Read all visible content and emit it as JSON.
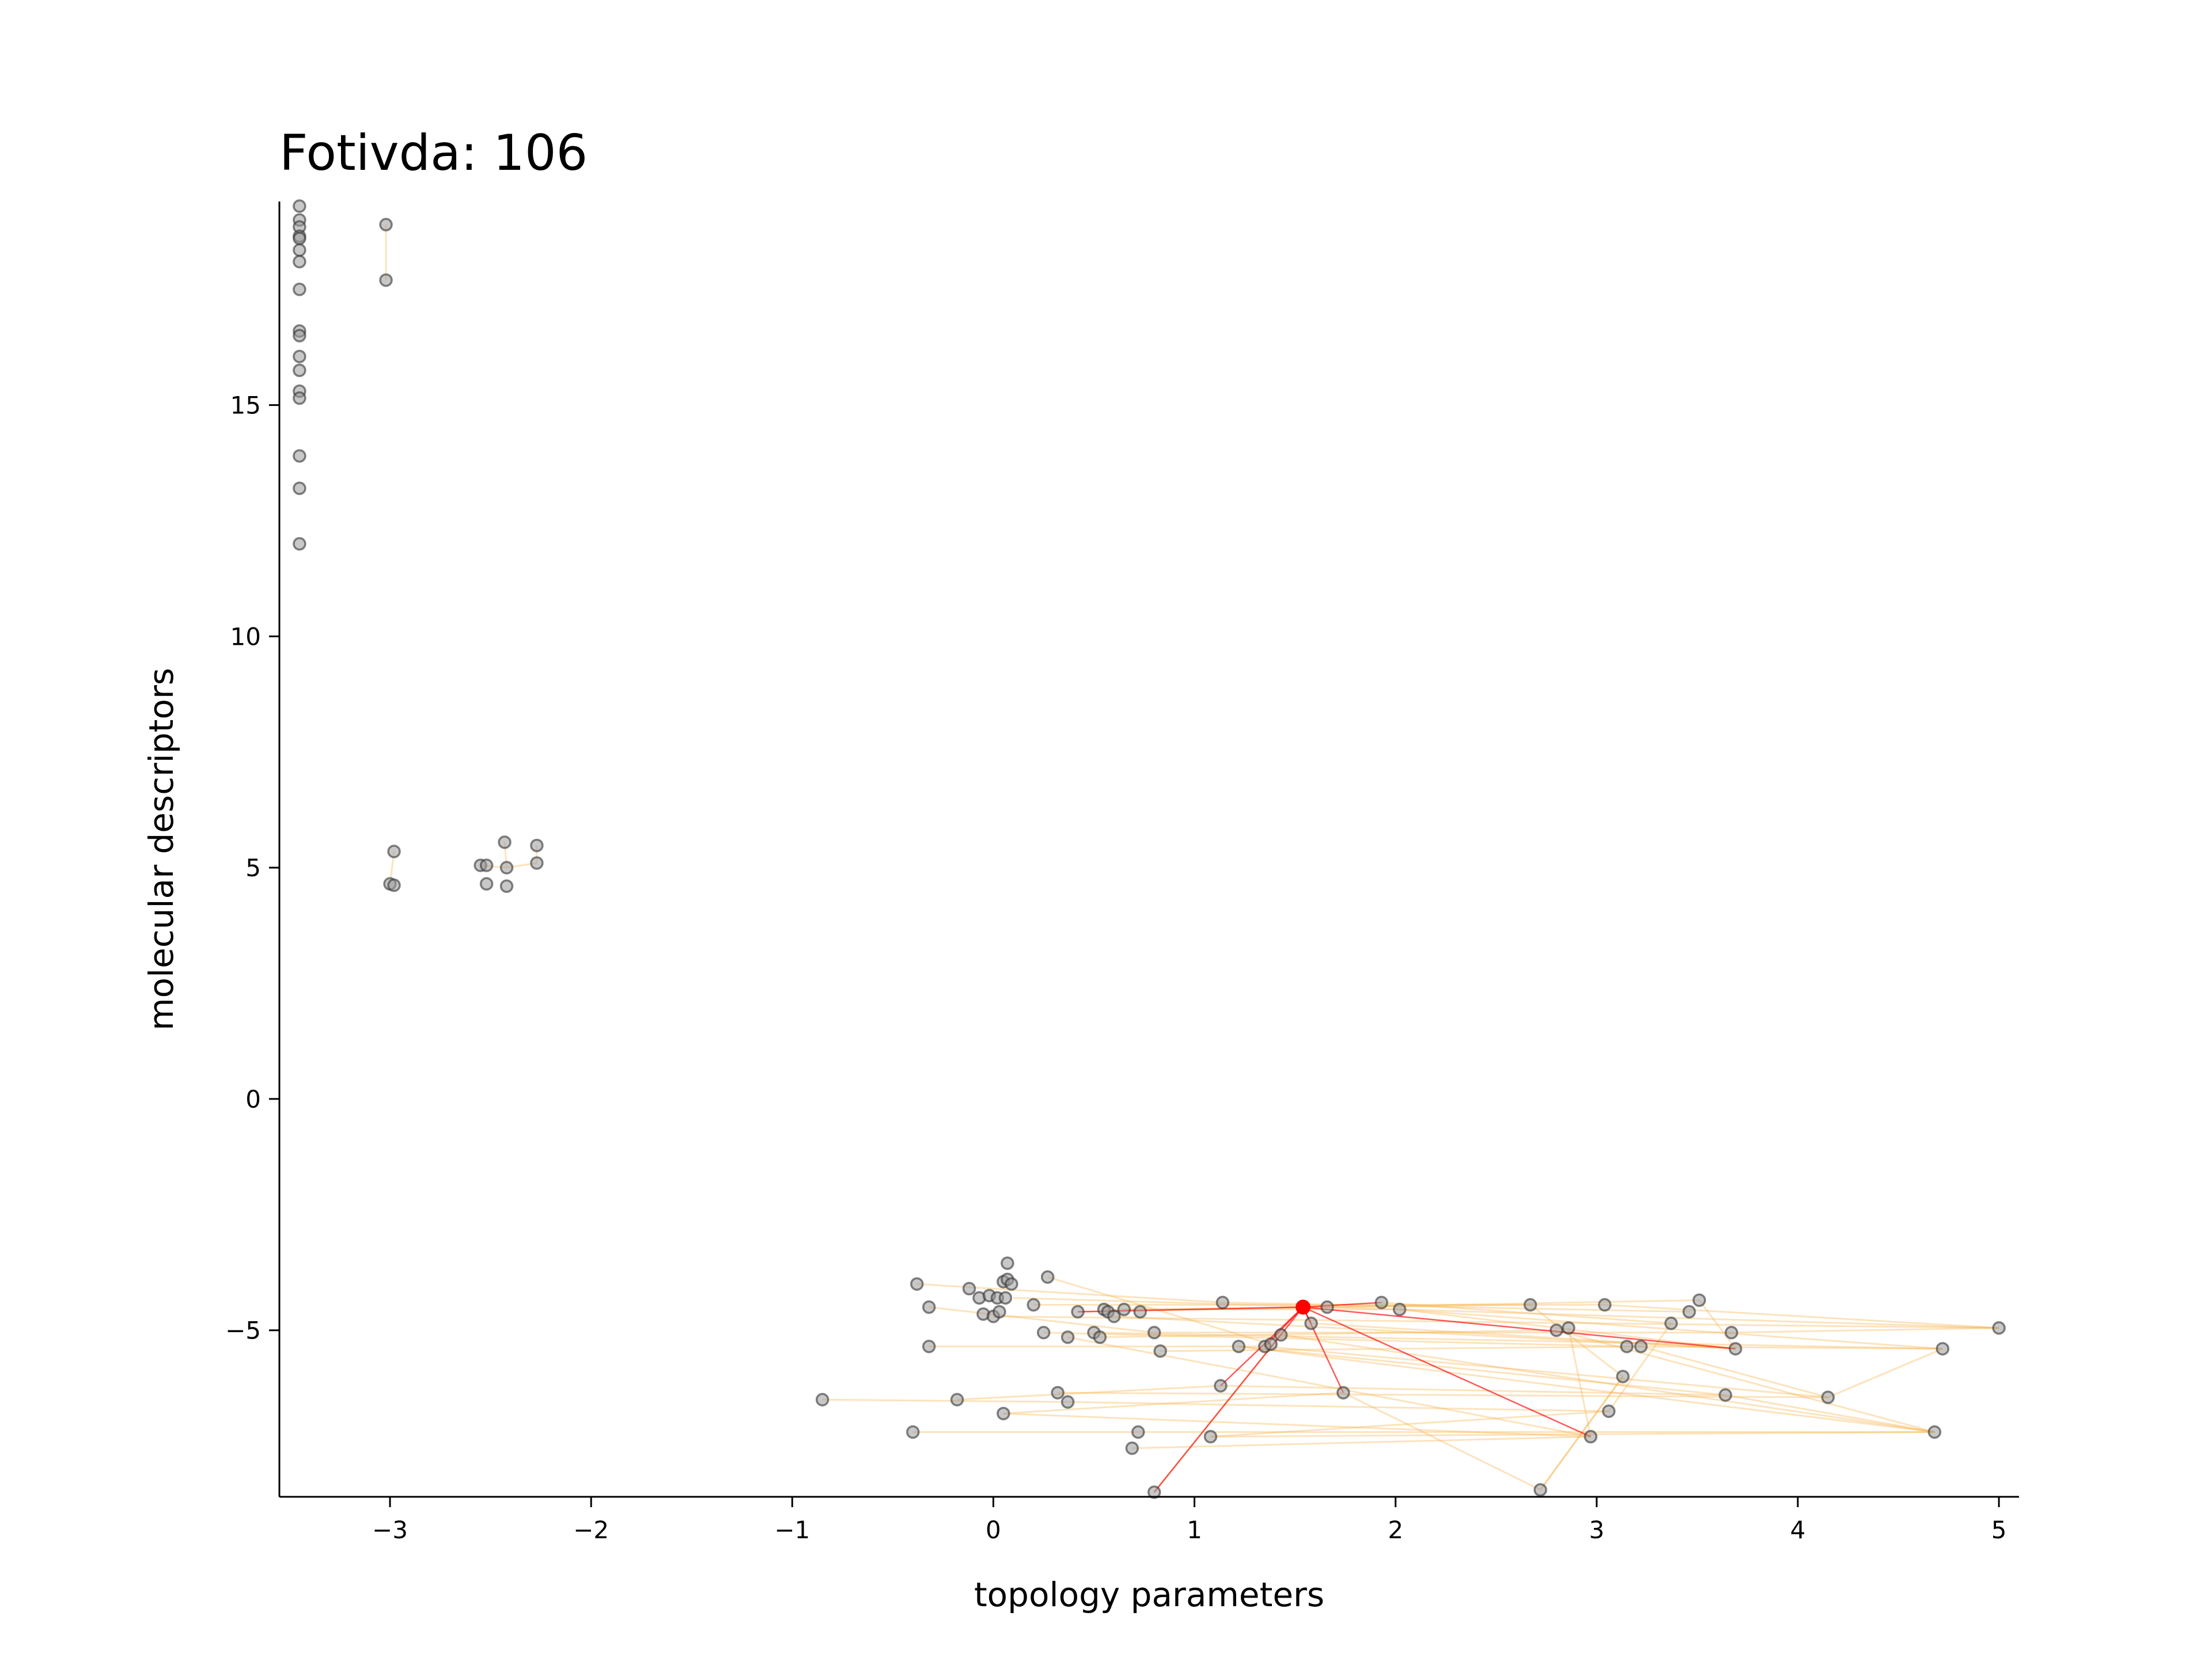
{
  "chart_data": {
    "type": "scatter",
    "title": "Fotivda: 106",
    "xlabel": "topology parameters",
    "ylabel": "molecular descriptors",
    "xlim": [
      -3.55,
      5.1
    ],
    "ylim": [
      -8.6,
      19.4
    ],
    "xticks": [
      -3,
      -2,
      -1,
      0,
      1,
      2,
      3,
      4,
      5
    ],
    "yticks": [
      -5,
      0,
      5,
      10,
      15
    ],
    "grid": false,
    "legend": "none",
    "colors": {
      "point_fill": "#9a9a9a",
      "point_edge": "#333333",
      "edge_line": "#f5b041",
      "highlight": "#ff0000",
      "axis": "#000000"
    },
    "highlight_point": {
      "x": 1.54,
      "y": -4.5
    },
    "points": [
      {
        "x": -3.45,
        "y": 19.3
      },
      {
        "x": -3.45,
        "y": 19.0
      },
      {
        "x": -3.45,
        "y": 18.85
      },
      {
        "x": -3.45,
        "y": 18.65
      },
      {
        "x": -3.45,
        "y": 18.6
      },
      {
        "x": -3.45,
        "y": 18.35
      },
      {
        "x": -3.45,
        "y": 18.1
      },
      {
        "x": -3.45,
        "y": 17.5
      },
      {
        "x": -3.45,
        "y": 16.6
      },
      {
        "x": -3.45,
        "y": 16.5
      },
      {
        "x": -3.45,
        "y": 16.05
      },
      {
        "x": -3.45,
        "y": 15.75
      },
      {
        "x": -3.45,
        "y": 15.3
      },
      {
        "x": -3.45,
        "y": 15.15
      },
      {
        "x": -3.45,
        "y": 13.9
      },
      {
        "x": -3.45,
        "y": 13.2
      },
      {
        "x": -3.45,
        "y": 12.0
      },
      {
        "x": -3.02,
        "y": 18.9
      },
      {
        "x": -3.02,
        "y": 17.7
      },
      {
        "x": -2.98,
        "y": 5.35
      },
      {
        "x": -3.0,
        "y": 4.65
      },
      {
        "x": -2.98,
        "y": 4.62
      },
      {
        "x": -2.55,
        "y": 5.05
      },
      {
        "x": -2.52,
        "y": 5.05
      },
      {
        "x": -2.52,
        "y": 4.65
      },
      {
        "x": -2.43,
        "y": 5.55
      },
      {
        "x": -2.42,
        "y": 5.0
      },
      {
        "x": -2.42,
        "y": 4.6
      },
      {
        "x": -2.27,
        "y": 5.48
      },
      {
        "x": -2.27,
        "y": 5.1
      },
      {
        "x": -0.85,
        "y": -6.5
      },
      {
        "x": -0.38,
        "y": -4.0
      },
      {
        "x": -0.32,
        "y": -4.5
      },
      {
        "x": -0.32,
        "y": -5.35
      },
      {
        "x": -0.4,
        "y": -7.2
      },
      {
        "x": -0.18,
        "y": -6.5
      },
      {
        "x": -0.12,
        "y": -4.1
      },
      {
        "x": -0.07,
        "y": -4.3
      },
      {
        "x": -0.05,
        "y": -4.65
      },
      {
        "x": -0.02,
        "y": -4.25
      },
      {
        "x": 0.0,
        "y": -4.7
      },
      {
        "x": 0.02,
        "y": -4.3
      },
      {
        "x": 0.03,
        "y": -4.6
      },
      {
        "x": 0.05,
        "y": -3.95
      },
      {
        "x": 0.06,
        "y": -4.3
      },
      {
        "x": 0.07,
        "y": -3.9
      },
      {
        "x": 0.09,
        "y": -4.0
      },
      {
        "x": 0.07,
        "y": -3.55
      },
      {
        "x": 0.05,
        "y": -6.8
      },
      {
        "x": 0.27,
        "y": -3.85
      },
      {
        "x": 0.2,
        "y": -4.45
      },
      {
        "x": 0.25,
        "y": -5.05
      },
      {
        "x": 0.32,
        "y": -6.35
      },
      {
        "x": 0.37,
        "y": -6.55
      },
      {
        "x": 0.37,
        "y": -5.15
      },
      {
        "x": 0.42,
        "y": -4.6
      },
      {
        "x": 0.5,
        "y": -5.05
      },
      {
        "x": 0.53,
        "y": -5.15
      },
      {
        "x": 0.55,
        "y": -4.55
      },
      {
        "x": 0.57,
        "y": -4.6
      },
      {
        "x": 0.6,
        "y": -4.7
      },
      {
        "x": 0.65,
        "y": -4.55
      },
      {
        "x": 0.73,
        "y": -4.6
      },
      {
        "x": 0.72,
        "y": -7.2
      },
      {
        "x": 0.69,
        "y": -7.55
      },
      {
        "x": 0.8,
        "y": -5.05
      },
      {
        "x": 0.83,
        "y": -5.45
      },
      {
        "x": 0.8,
        "y": -8.5
      },
      {
        "x": 1.08,
        "y": -7.3
      },
      {
        "x": 1.13,
        "y": -6.2
      },
      {
        "x": 1.14,
        "y": -4.4
      },
      {
        "x": 1.22,
        "y": -5.35
      },
      {
        "x": 1.35,
        "y": -5.35
      },
      {
        "x": 1.38,
        "y": -5.3
      },
      {
        "x": 1.43,
        "y": -5.1
      },
      {
        "x": 1.58,
        "y": -4.85
      },
      {
        "x": 1.66,
        "y": -4.5
      },
      {
        "x": 1.74,
        "y": -6.35
      },
      {
        "x": 1.93,
        "y": -4.4
      },
      {
        "x": 2.02,
        "y": -4.55
      },
      {
        "x": 2.67,
        "y": -4.45
      },
      {
        "x": 2.72,
        "y": -8.45
      },
      {
        "x": 2.8,
        "y": -5.0
      },
      {
        "x": 2.86,
        "y": -4.95
      },
      {
        "x": 2.97,
        "y": -7.3
      },
      {
        "x": 3.04,
        "y": -4.45
      },
      {
        "x": 3.06,
        "y": -6.75
      },
      {
        "x": 3.13,
        "y": -6.0
      },
      {
        "x": 3.15,
        "y": -5.35
      },
      {
        "x": 3.22,
        "y": -5.35
      },
      {
        "x": 3.37,
        "y": -4.85
      },
      {
        "x": 3.46,
        "y": -4.6
      },
      {
        "x": 3.51,
        "y": -4.35
      },
      {
        "x": 3.64,
        "y": -6.4
      },
      {
        "x": 3.67,
        "y": -5.05
      },
      {
        "x": 3.69,
        "y": -5.4
      },
      {
        "x": 4.15,
        "y": -6.45
      },
      {
        "x": 4.68,
        "y": -7.2
      },
      {
        "x": 4.72,
        "y": -5.4
      },
      {
        "x": 5.0,
        "y": -4.95
      }
    ],
    "edges": [
      [
        -3.02,
        18.9,
        -3.02,
        17.7
      ],
      [
        -2.98,
        5.35,
        -3.0,
        4.65
      ],
      [
        -2.55,
        5.05,
        -2.42,
        5.0
      ],
      [
        -2.42,
        5.0,
        -2.27,
        5.1
      ],
      [
        -2.27,
        5.48,
        -2.27,
        5.1
      ],
      [
        -2.43,
        5.55,
        -2.42,
        5.0
      ],
      [
        -0.85,
        -6.5,
        0.37,
        -6.55
      ],
      [
        -0.38,
        -4.0,
        1.14,
        -4.4
      ],
      [
        -0.32,
        -4.5,
        0.8,
        -5.05
      ],
      [
        -0.18,
        -6.5,
        1.13,
        -6.2
      ],
      [
        0.0,
        -4.7,
        5.0,
        -4.95
      ],
      [
        0.05,
        -6.8,
        1.74,
        -6.35
      ],
      [
        0.2,
        -4.45,
        3.04,
        -4.45
      ],
      [
        0.25,
        -5.05,
        3.15,
        -5.35
      ],
      [
        0.32,
        -6.35,
        4.15,
        -6.45
      ],
      [
        0.37,
        -5.15,
        2.97,
        -7.3
      ],
      [
        0.42,
        -4.6,
        3.51,
        -4.35
      ],
      [
        0.5,
        -5.05,
        4.72,
        -5.4
      ],
      [
        0.55,
        -4.55,
        2.02,
        -4.55
      ],
      [
        0.6,
        -4.7,
        3.69,
        -5.4
      ],
      [
        0.72,
        -7.2,
        4.68,
        -7.2
      ],
      [
        0.8,
        -5.05,
        3.67,
        -5.05
      ],
      [
        0.83,
        -5.45,
        3.22,
        -5.35
      ],
      [
        1.08,
        -7.3,
        3.06,
        -6.75
      ],
      [
        1.13,
        -6.2,
        3.64,
        -6.4
      ],
      [
        1.14,
        -4.4,
        3.46,
        -4.6
      ],
      [
        1.22,
        -5.35,
        4.68,
        -7.2
      ],
      [
        1.35,
        -5.35,
        4.15,
        -6.45
      ],
      [
        1.66,
        -4.5,
        5.0,
        -4.95
      ],
      [
        1.74,
        -6.35,
        2.72,
        -8.45
      ],
      [
        1.93,
        -4.4,
        3.37,
        -4.85
      ],
      [
        2.02,
        -4.55,
        4.72,
        -5.4
      ],
      [
        2.67,
        -4.45,
        3.13,
        -6.0
      ],
      [
        2.8,
        -5.0,
        4.68,
        -7.2
      ],
      [
        2.86,
        -4.95,
        2.97,
        -7.3
      ],
      [
        3.04,
        -4.45,
        5.0,
        -4.95
      ],
      [
        3.13,
        -6.0,
        2.72,
        -8.45
      ],
      [
        3.15,
        -5.35,
        4.72,
        -5.4
      ],
      [
        3.22,
        -5.35,
        4.15,
        -6.45
      ],
      [
        3.37,
        -4.85,
        3.06,
        -6.75
      ],
      [
        3.51,
        -4.35,
        3.69,
        -5.4
      ],
      [
        3.64,
        -6.4,
        4.68,
        -7.2
      ],
      [
        3.67,
        -5.05,
        5.0,
        -4.95
      ],
      [
        0.69,
        -7.55,
        2.97,
        -7.3
      ],
      [
        0.8,
        -8.5,
        1.43,
        -5.1
      ],
      [
        0.1,
        -4.3,
        1.66,
        -4.5
      ],
      [
        0.27,
        -3.85,
        1.38,
        -5.3
      ],
      [
        -0.4,
        -7.2,
        0.72,
        -7.2
      ],
      [
        1.58,
        -4.85,
        3.69,
        -5.4
      ],
      [
        2.72,
        -8.45,
        3.13,
        -6.0
      ],
      [
        4.15,
        -6.45,
        4.72,
        -5.4
      ],
      [
        1.43,
        -5.1,
        4.68,
        -7.2
      ],
      [
        0.53,
        -5.15,
        2.8,
        -5.0
      ],
      [
        0.65,
        -4.55,
        2.67,
        -4.45
      ],
      [
        1.22,
        -5.35,
        3.64,
        -6.4
      ],
      [
        2.02,
        -4.55,
        3.69,
        -5.4
      ],
      [
        0.05,
        -6.8,
        2.97,
        -7.3
      ],
      [
        0.37,
        -6.55,
        3.06,
        -6.75
      ],
      [
        1.08,
        -7.3,
        4.68,
        -7.2
      ],
      [
        -0.32,
        -5.35,
        1.35,
        -5.35
      ]
    ],
    "highlight_edges": [
      [
        1.54,
        -4.5,
        0.8,
        -8.5
      ],
      [
        1.54,
        -4.5,
        1.13,
        -6.2
      ],
      [
        1.54,
        -4.5,
        0.42,
        -4.6
      ],
      [
        1.54,
        -4.5,
        1.74,
        -6.35
      ],
      [
        1.54,
        -4.5,
        1.93,
        -4.4
      ],
      [
        1.54,
        -4.5,
        2.97,
        -7.3
      ],
      [
        1.54,
        -4.5,
        3.69,
        -5.4
      ],
      [
        1.54,
        -4.5,
        1.35,
        -5.35
      ],
      [
        1.54,
        -4.5,
        1.58,
        -4.85
      ]
    ]
  }
}
